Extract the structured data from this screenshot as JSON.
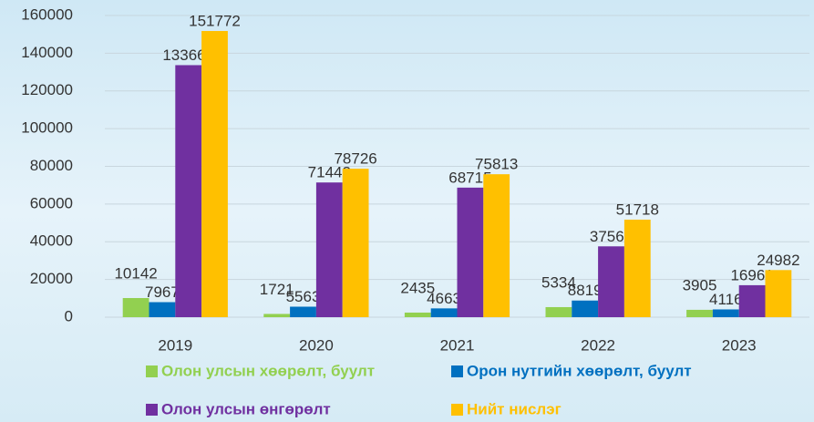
{
  "chart_data": {
    "type": "bar",
    "categories": [
      "2019",
      "2020",
      "2021",
      "2022",
      "2023"
    ],
    "series": [
      {
        "name": "Олон улсын хөөрөлт, буулт",
        "color": "#92d050",
        "values": [
          10142,
          1721,
          2435,
          5334,
          3905
        ]
      },
      {
        "name": "Орон нутгийн хөөрөлт, буулт",
        "color": "#0070c0",
        "values": [
          7967,
          5563,
          4663,
          8819,
          4116
        ]
      },
      {
        "name": "Олон улсын өнгөрөлт",
        "color": "#7030a0",
        "values": [
          133663,
          71442,
          68715,
          37565,
          16961
        ]
      },
      {
        "name": "Нийт нислэг",
        "color": "#ffc000",
        "values": [
          151772,
          78726,
          75813,
          51718,
          24982
        ]
      }
    ],
    "ylim": [
      0,
      160000
    ],
    "yticks": [
      0,
      20000,
      40000,
      60000,
      80000,
      100000,
      120000,
      140000,
      160000
    ],
    "grid": true
  }
}
